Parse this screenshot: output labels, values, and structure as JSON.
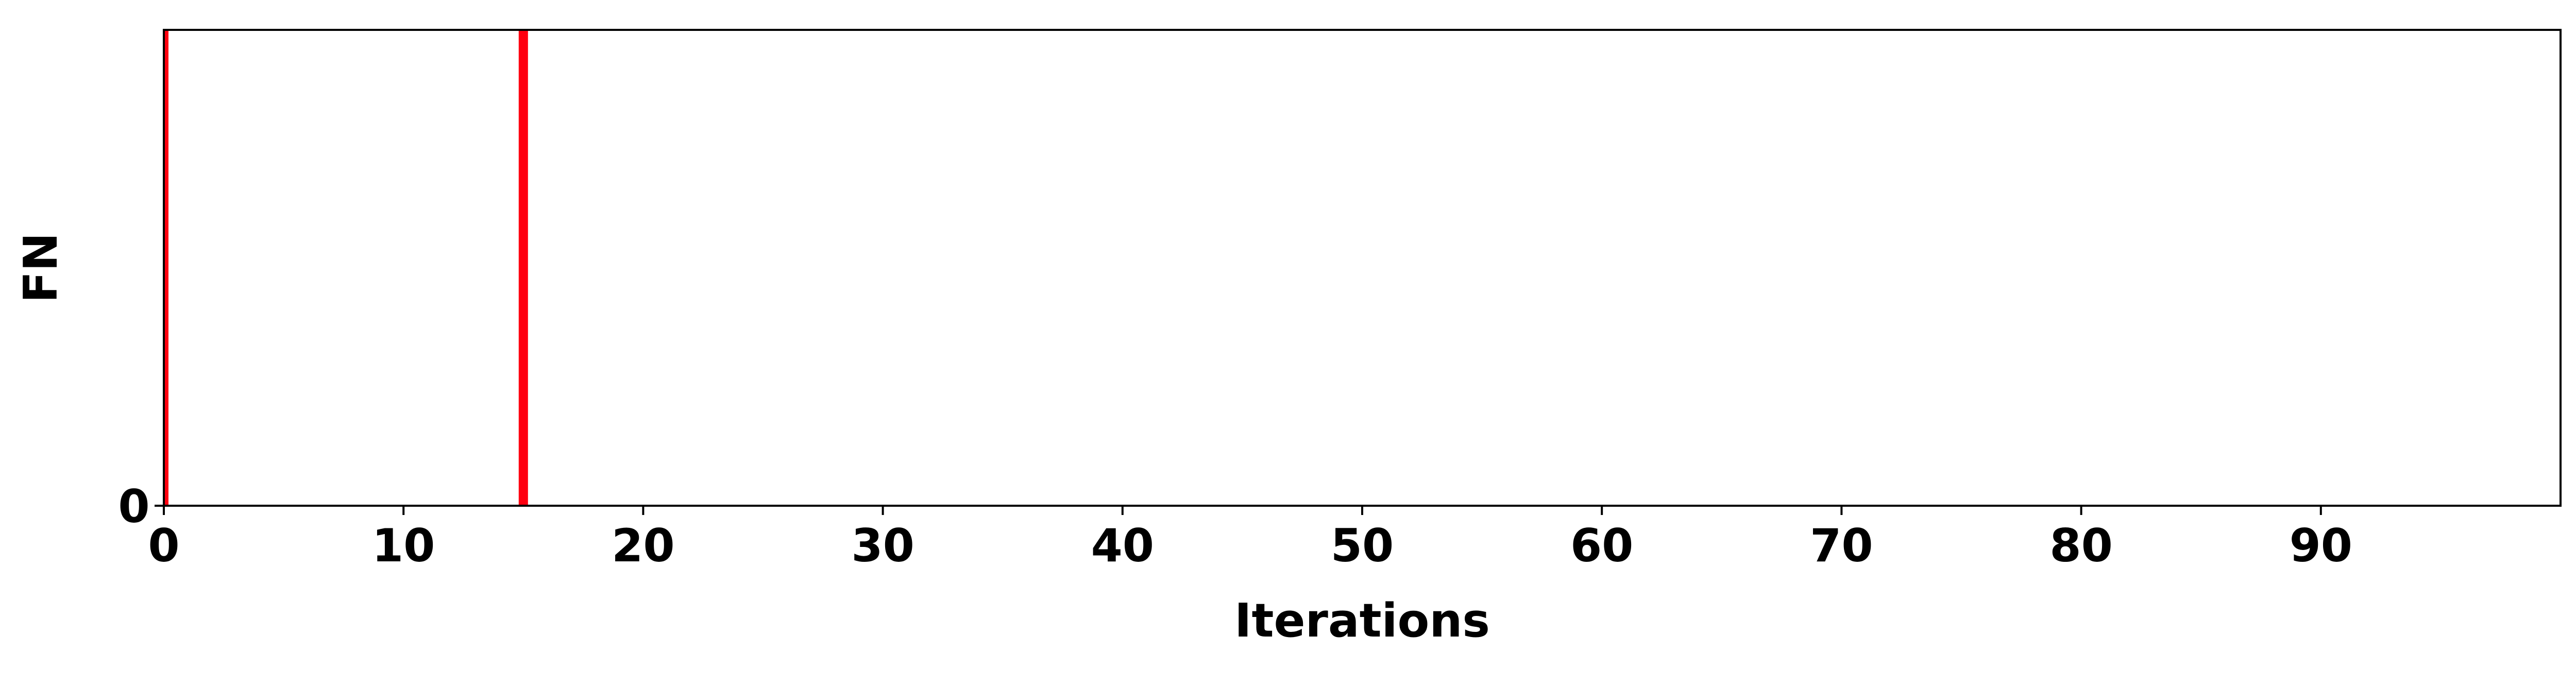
{
  "chart_data": {
    "type": "bar",
    "title": "",
    "xlabel": "Iterations",
    "ylabel": "FN",
    "xlim": [
      0,
      100
    ],
    "x_ticks": [
      0,
      10,
      20,
      30,
      40,
      50,
      60,
      70,
      80,
      90
    ],
    "y_ticks": [
      0
    ],
    "grid": false,
    "legend": "none",
    "series": [
      {
        "x": [
          0,
          15
        ],
        "values": [
          1,
          1
        ],
        "color": "#ff0010"
      }
    ]
  }
}
